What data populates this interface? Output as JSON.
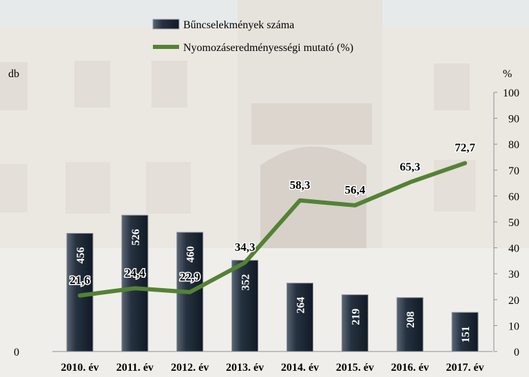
{
  "chart_data": {
    "type": "bar+line",
    "categories": [
      "2010. év",
      "2011. év",
      "2012. év",
      "2013. év",
      "2014. év",
      "2015. év",
      "2016. év",
      "2017. év"
    ],
    "series": [
      {
        "name": "Bűncselekmények száma",
        "type": "bar",
        "axis": "left",
        "values": [
          456,
          526,
          460,
          352,
          264,
          219,
          208,
          151
        ],
        "labels": [
          "456",
          "526",
          "460",
          "352",
          "264",
          "219",
          "208",
          "151"
        ],
        "color": "#1f2937"
      },
      {
        "name": "Nyomozáseredményességi mutató (%)",
        "type": "line",
        "axis": "right",
        "values": [
          21.6,
          24.4,
          22.9,
          34.3,
          58.3,
          56.4,
          65.3,
          72.7
        ],
        "labels": [
          "21,6",
          "24,4",
          "22,9",
          "34,3",
          "58,3",
          "56,4",
          "65,3",
          "72,7"
        ],
        "color": "#548235"
      }
    ],
    "y_left": {
      "unit_label": "db",
      "min_label": "0",
      "range": [
        0,
        1000
      ]
    },
    "y_right": {
      "unit_label": "%",
      "range": [
        0,
        100
      ],
      "ticks": [
        0,
        10,
        20,
        30,
        40,
        50,
        60,
        70,
        80,
        90,
        100
      ]
    },
    "legend": {
      "position": "top"
    },
    "grid": false
  }
}
